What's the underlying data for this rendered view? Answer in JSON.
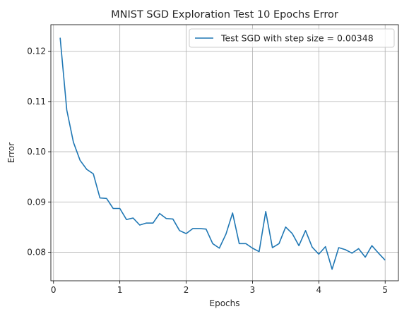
{
  "chart_data": {
    "type": "line",
    "title": "MNIST SGD Exploration Test 10 Epochs Error",
    "xlabel": "Epochs",
    "ylabel": "Error",
    "xlim": [
      -0.04,
      5.2
    ],
    "ylim": [
      0.0743,
      0.1253
    ],
    "xticks": [
      0,
      1,
      2,
      3,
      4,
      5
    ],
    "yticks": [
      0.08,
      0.09,
      0.1,
      0.11,
      0.12
    ],
    "ytick_labels": [
      "0.08",
      "0.09",
      "0.10",
      "0.11",
      "0.12"
    ],
    "grid": true,
    "legend_position": "top-right",
    "series": [
      {
        "name": "Test SGD with step size = 0.00348",
        "color": "#1f77b4",
        "x": [
          0.1,
          0.2,
          0.3,
          0.4,
          0.5,
          0.6,
          0.7,
          0.8,
          0.9,
          1.0,
          1.1,
          1.2,
          1.3,
          1.4,
          1.5,
          1.6,
          1.7,
          1.8,
          1.9,
          2.0,
          2.1,
          2.2,
          2.3,
          2.4,
          2.5,
          2.6,
          2.7,
          2.8,
          2.9,
          3.0,
          3.1,
          3.2,
          3.3,
          3.4,
          3.5,
          3.6,
          3.7,
          3.8,
          3.9,
          4.0,
          4.1,
          4.2,
          4.3,
          4.4,
          4.5,
          4.6,
          4.7,
          4.8,
          4.9,
          5.0
        ],
        "y": [
          0.1227,
          0.1083,
          0.1019,
          0.0983,
          0.0965,
          0.0956,
          0.0908,
          0.0907,
          0.0887,
          0.0887,
          0.0865,
          0.0868,
          0.0854,
          0.0858,
          0.0858,
          0.0877,
          0.0867,
          0.0866,
          0.0843,
          0.0837,
          0.0847,
          0.0847,
          0.0846,
          0.0817,
          0.0808,
          0.0836,
          0.0878,
          0.0817,
          0.0817,
          0.0808,
          0.0801,
          0.0881,
          0.0809,
          0.0817,
          0.085,
          0.0837,
          0.0813,
          0.0843,
          0.081,
          0.0796,
          0.0811,
          0.0766,
          0.0809,
          0.0805,
          0.0798,
          0.0807,
          0.079,
          0.0813,
          0.0798,
          0.0784
        ]
      }
    ]
  }
}
